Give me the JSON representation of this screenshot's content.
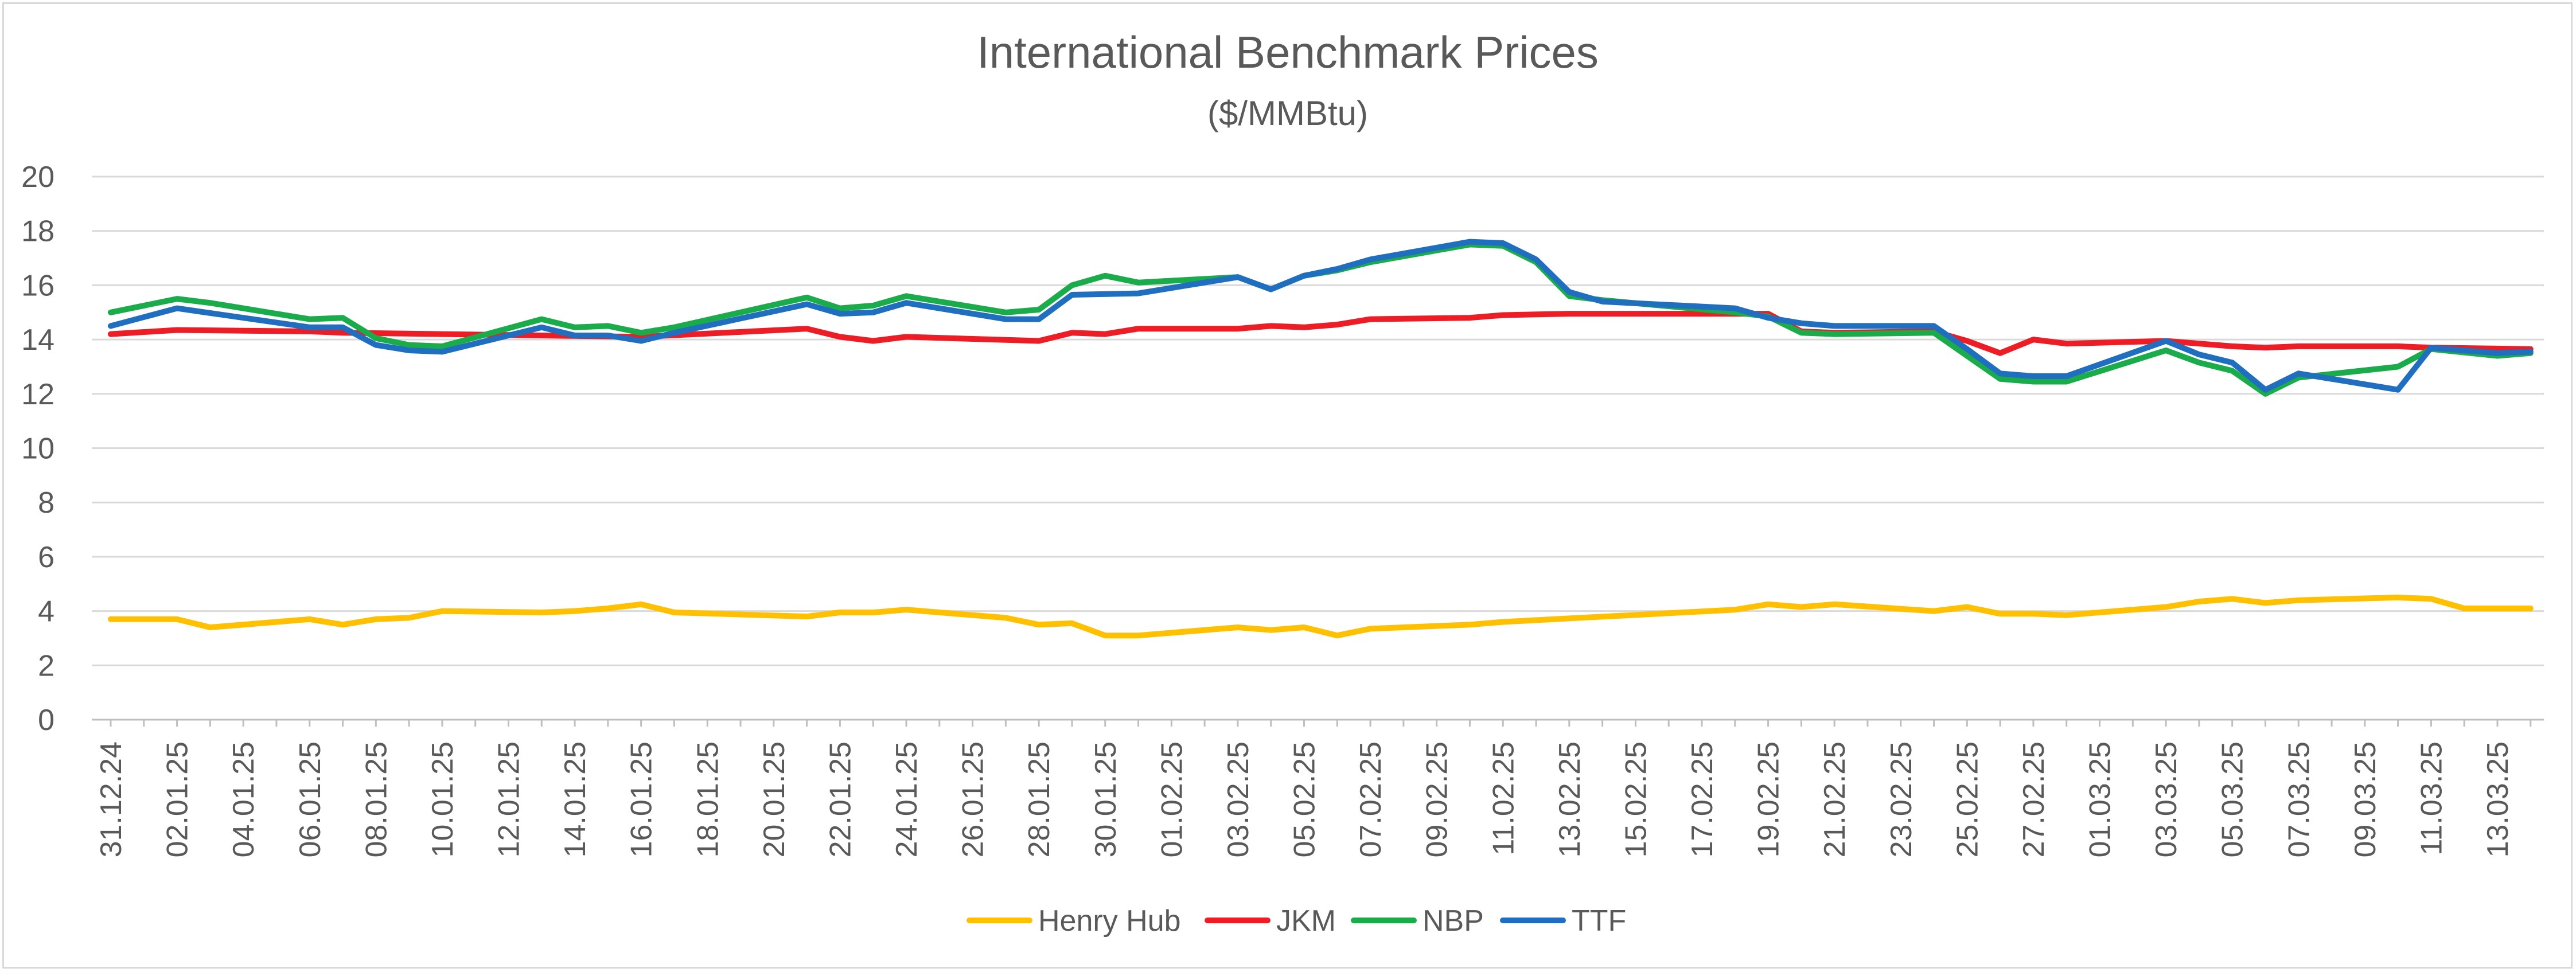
{
  "chart_data": {
    "type": "line",
    "title": "International Benchmark Prices",
    "subtitle": "($/MMBtu)",
    "xlabel": "",
    "ylabel": "",
    "ylim": [
      0,
      20
    ],
    "ytick_step": 2,
    "grid": true,
    "legend_position": "bottom",
    "x_tick_labels": [
      "31.12.24",
      "02.01.25",
      "04.01.25",
      "06.01.25",
      "08.01.25",
      "10.01.25",
      "12.01.25",
      "14.01.25",
      "16.01.25",
      "18.01.25",
      "20.01.25",
      "22.01.25",
      "24.01.25",
      "26.01.25",
      "28.01.25",
      "30.01.25",
      "01.02.25",
      "03.02.25",
      "05.02.25",
      "07.02.25",
      "09.02.25",
      "11.02.25",
      "13.02.25",
      "15.02.25",
      "17.02.25",
      "19.02.25",
      "21.02.25",
      "23.02.25",
      "25.02.25",
      "27.02.25",
      "01.03.25",
      "03.03.25",
      "05.03.25",
      "07.03.25",
      "09.03.25",
      "11.03.25",
      "13.03.25"
    ],
    "series": [
      {
        "name": "Henry Hub",
        "color": "#ffc000",
        "points": [
          [
            "31.12.24",
            3.7
          ],
          [
            "02.01.25",
            3.7
          ],
          [
            "03.01.25",
            3.4
          ],
          [
            "06.01.25",
            3.7
          ],
          [
            "07.01.25",
            3.5
          ],
          [
            "08.01.25",
            3.7
          ],
          [
            "09.01.25",
            3.75
          ],
          [
            "10.01.25",
            4.0
          ],
          [
            "13.01.25",
            3.95
          ],
          [
            "14.01.25",
            4.0
          ],
          [
            "15.01.25",
            4.1
          ],
          [
            "16.01.25",
            4.25
          ],
          [
            "17.01.25",
            3.95
          ],
          [
            "21.01.25",
            3.8
          ],
          [
            "22.01.25",
            3.95
          ],
          [
            "23.01.25",
            3.95
          ],
          [
            "24.01.25",
            4.05
          ],
          [
            "27.01.25",
            3.75
          ],
          [
            "28.01.25",
            3.5
          ],
          [
            "29.01.25",
            3.55
          ],
          [
            "30.01.25",
            3.1
          ],
          [
            "31.01.25",
            3.1
          ],
          [
            "03.02.25",
            3.4
          ],
          [
            "04.02.25",
            3.3
          ],
          [
            "05.02.25",
            3.4
          ],
          [
            "06.02.25",
            3.1
          ],
          [
            "07.02.25",
            3.35
          ],
          [
            "10.02.25",
            3.5
          ],
          [
            "11.02.25",
            3.6
          ],
          [
            "18.02.25",
            4.05
          ],
          [
            "19.02.25",
            4.25
          ],
          [
            "20.02.25",
            4.15
          ],
          [
            "21.02.25",
            4.25
          ],
          [
            "24.02.25",
            4.0
          ],
          [
            "25.02.25",
            4.15
          ],
          [
            "26.02.25",
            3.9
          ],
          [
            "27.02.25",
            3.9
          ],
          [
            "28.02.25",
            3.85
          ],
          [
            "03.03.25",
            4.15
          ],
          [
            "04.03.25",
            4.35
          ],
          [
            "05.03.25",
            4.45
          ],
          [
            "06.03.25",
            4.3
          ],
          [
            "07.03.25",
            4.4
          ],
          [
            "10.03.25",
            4.5
          ],
          [
            "11.03.25",
            4.45
          ],
          [
            "12.03.25",
            4.1
          ],
          [
            "14.03.25",
            4.1
          ]
        ]
      },
      {
        "name": "JKM",
        "color": "#ee1c25",
        "points": [
          [
            "31.12.24",
            14.2
          ],
          [
            "02.01.25",
            14.35
          ],
          [
            "06.01.25",
            14.3
          ],
          [
            "07.01.25",
            14.25
          ],
          [
            "10.01.25",
            14.2
          ],
          [
            "13.01.25",
            14.15
          ],
          [
            "16.01.25",
            14.1
          ],
          [
            "21.01.25",
            14.4
          ],
          [
            "22.01.25",
            14.1
          ],
          [
            "23.01.25",
            13.95
          ],
          [
            "24.01.25",
            14.1
          ],
          [
            "28.01.25",
            13.95
          ],
          [
            "29.01.25",
            14.25
          ],
          [
            "30.01.25",
            14.2
          ],
          [
            "31.01.25",
            14.4
          ],
          [
            "03.02.25",
            14.4
          ],
          [
            "04.02.25",
            14.5
          ],
          [
            "05.02.25",
            14.45
          ],
          [
            "06.02.25",
            14.55
          ],
          [
            "07.02.25",
            14.75
          ],
          [
            "10.02.25",
            14.8
          ],
          [
            "11.02.25",
            14.9
          ],
          [
            "13.02.25",
            14.95
          ],
          [
            "19.02.25",
            14.95
          ],
          [
            "20.02.25",
            14.3
          ],
          [
            "21.02.25",
            14.25
          ],
          [
            "24.02.25",
            14.3
          ],
          [
            "25.02.25",
            13.95
          ],
          [
            "26.02.25",
            13.5
          ],
          [
            "27.02.25",
            14.0
          ],
          [
            "28.02.25",
            13.85
          ],
          [
            "03.03.25",
            13.95
          ],
          [
            "04.03.25",
            13.85
          ],
          [
            "05.03.25",
            13.75
          ],
          [
            "06.03.25",
            13.7
          ],
          [
            "07.03.25",
            13.75
          ],
          [
            "10.03.25",
            13.75
          ],
          [
            "11.03.25",
            13.7
          ],
          [
            "14.03.25",
            13.65
          ]
        ]
      },
      {
        "name": "NBP",
        "color": "#1aab4b",
        "points": [
          [
            "31.12.24",
            15.0
          ],
          [
            "02.01.25",
            15.5
          ],
          [
            "03.01.25",
            15.35
          ],
          [
            "06.01.25",
            14.75
          ],
          [
            "07.01.25",
            14.8
          ],
          [
            "08.01.25",
            14.05
          ],
          [
            "09.01.25",
            13.8
          ],
          [
            "10.01.25",
            13.75
          ],
          [
            "13.01.25",
            14.75
          ],
          [
            "14.01.25",
            14.45
          ],
          [
            "15.01.25",
            14.5
          ],
          [
            "16.01.25",
            14.25
          ],
          [
            "17.01.25",
            14.45
          ],
          [
            "21.01.25",
            15.55
          ],
          [
            "22.01.25",
            15.15
          ],
          [
            "23.01.25",
            15.25
          ],
          [
            "24.01.25",
            15.6
          ],
          [
            "27.01.25",
            15.0
          ],
          [
            "28.01.25",
            15.1
          ],
          [
            "29.01.25",
            16.0
          ],
          [
            "30.01.25",
            16.35
          ],
          [
            "31.01.25",
            16.1
          ],
          [
            "03.02.25",
            16.3
          ],
          [
            "04.02.25",
            15.85
          ],
          [
            "05.02.25",
            16.35
          ],
          [
            "06.02.25",
            16.55
          ],
          [
            "07.02.25",
            16.85
          ],
          [
            "10.02.25",
            17.5
          ],
          [
            "11.02.25",
            17.45
          ],
          [
            "12.02.25",
            16.85
          ],
          [
            "13.02.25",
            15.6
          ],
          [
            "14.02.25",
            15.45
          ],
          [
            "18.02.25",
            15.0
          ],
          [
            "19.02.25",
            14.85
          ],
          [
            "20.02.25",
            14.25
          ],
          [
            "21.02.25",
            14.2
          ],
          [
            "24.02.25",
            14.25
          ],
          [
            "25.02.25",
            13.4
          ],
          [
            "26.02.25",
            12.55
          ],
          [
            "27.02.25",
            12.45
          ],
          [
            "28.02.25",
            12.45
          ],
          [
            "03.03.25",
            13.6
          ],
          [
            "04.03.25",
            13.15
          ],
          [
            "05.03.25",
            12.85
          ],
          [
            "06.03.25",
            12.0
          ],
          [
            "07.03.25",
            12.6
          ],
          [
            "10.03.25",
            13.0
          ],
          [
            "11.03.25",
            13.65
          ],
          [
            "13.03.25",
            13.4
          ],
          [
            "14.03.25",
            13.5
          ]
        ]
      },
      {
        "name": "TTF",
        "color": "#1f6ec0",
        "points": [
          [
            "31.12.24",
            14.5
          ],
          [
            "02.01.25",
            15.15
          ],
          [
            "06.01.25",
            14.45
          ],
          [
            "07.01.25",
            14.45
          ],
          [
            "08.01.25",
            13.8
          ],
          [
            "09.01.25",
            13.6
          ],
          [
            "10.01.25",
            13.55
          ],
          [
            "13.01.25",
            14.45
          ],
          [
            "14.01.25",
            14.15
          ],
          [
            "15.01.25",
            14.15
          ],
          [
            "16.01.25",
            13.95
          ],
          [
            "17.01.25",
            14.25
          ],
          [
            "21.01.25",
            15.3
          ],
          [
            "22.01.25",
            14.95
          ],
          [
            "23.01.25",
            15.0
          ],
          [
            "24.01.25",
            15.35
          ],
          [
            "27.01.25",
            14.75
          ],
          [
            "28.01.25",
            14.75
          ],
          [
            "29.01.25",
            15.65
          ],
          [
            "31.01.25",
            15.7
          ],
          [
            "03.02.25",
            16.3
          ],
          [
            "04.02.25",
            15.85
          ],
          [
            "05.02.25",
            16.35
          ],
          [
            "06.02.25",
            16.6
          ],
          [
            "07.02.25",
            16.95
          ],
          [
            "10.02.25",
            17.6
          ],
          [
            "11.02.25",
            17.55
          ],
          [
            "12.02.25",
            16.95
          ],
          [
            "13.02.25",
            15.75
          ],
          [
            "14.02.25",
            15.4
          ],
          [
            "18.02.25",
            15.15
          ],
          [
            "19.02.25",
            14.8
          ],
          [
            "20.02.25",
            14.6
          ],
          [
            "21.02.25",
            14.5
          ],
          [
            "24.02.25",
            14.5
          ],
          [
            "25.02.25",
            13.65
          ],
          [
            "26.02.25",
            12.75
          ],
          [
            "27.02.25",
            12.65
          ],
          [
            "28.02.25",
            12.65
          ],
          [
            "03.03.25",
            13.95
          ],
          [
            "04.03.25",
            13.45
          ],
          [
            "05.03.25",
            13.15
          ],
          [
            "06.03.25",
            12.15
          ],
          [
            "07.03.25",
            12.75
          ],
          [
            "10.03.25",
            12.15
          ],
          [
            "11.03.25",
            13.7
          ],
          [
            "13.03.25",
            13.5
          ],
          [
            "14.03.25",
            13.55
          ]
        ]
      }
    ]
  }
}
